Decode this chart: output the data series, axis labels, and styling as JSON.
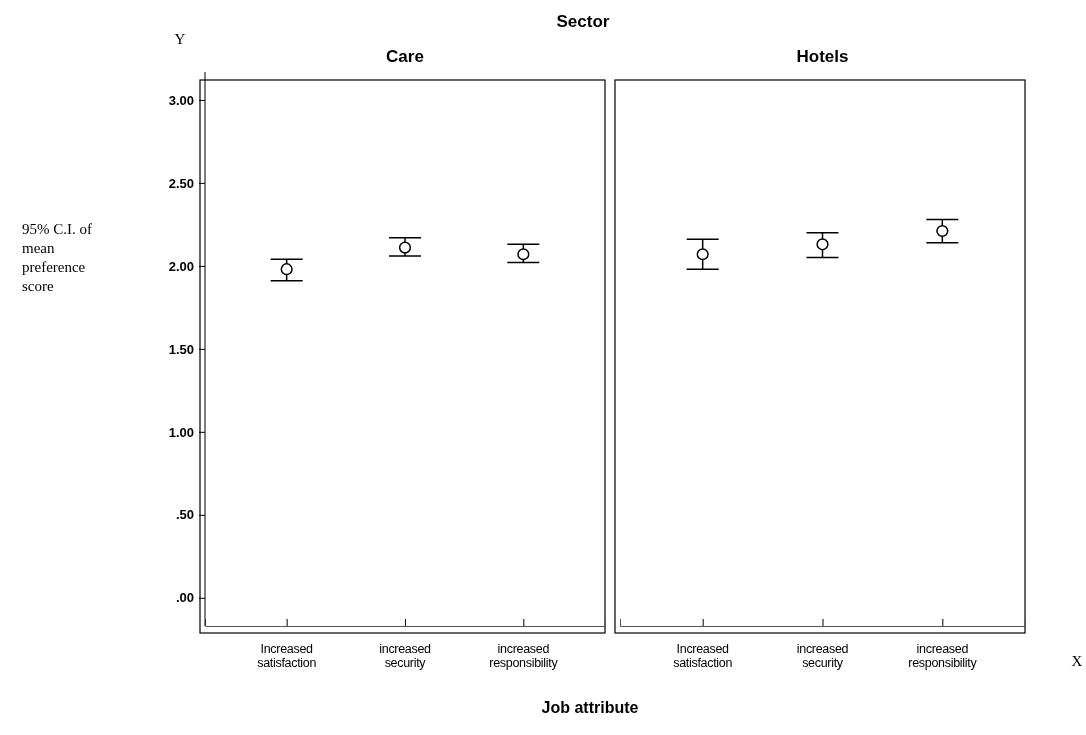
{
  "chart_data": [
    {
      "type": "scatter",
      "title": "Care",
      "xlabel": "Job attribute",
      "ylabel": "95% C.I. of mean preference score",
      "annotations": [
        "Sector",
        "Y"
      ],
      "categories": [
        "Increased satisfaction",
        "increased security",
        "increased responsibility"
      ],
      "values": [
        1.98,
        2.11,
        2.07
      ],
      "errors": [
        [
          1.91,
          2.04
        ],
        [
          2.06,
          2.17
        ],
        [
          2.02,
          2.13
        ]
      ],
      "color": "#000000",
      "ylim": [
        -0.17,
        3.12
      ],
      "yticks": [
        {
          "value": 0,
          "label": ".00"
        },
        {
          "value": 0.5,
          "label": ".50"
        },
        {
          "value": 1,
          "label": "1.00"
        },
        {
          "value": 1.5,
          "label": "1.50"
        },
        {
          "value": 2,
          "label": "2.00"
        },
        {
          "value": 2.5,
          "label": "2.50"
        },
        {
          "value": 3,
          "label": "3.00"
        }
      ],
      "marker": "circle",
      "grid": false
    },
    {
      "type": "scatter",
      "title": "Hotels",
      "annotations": [
        "X"
      ],
      "categories": [
        "Increased satisfaction",
        "increased security",
        "increased responsibility"
      ],
      "values": [
        2.07,
        2.13,
        2.21
      ],
      "errors": [
        [
          1.98,
          2.16
        ],
        [
          2.05,
          2.2
        ],
        [
          2.14,
          2.28
        ]
      ],
      "color": "#000000",
      "ylim": [
        -0.17,
        3.12
      ],
      "tick_labels": "x",
      "marker": "circle",
      "grid": false
    }
  ]
}
